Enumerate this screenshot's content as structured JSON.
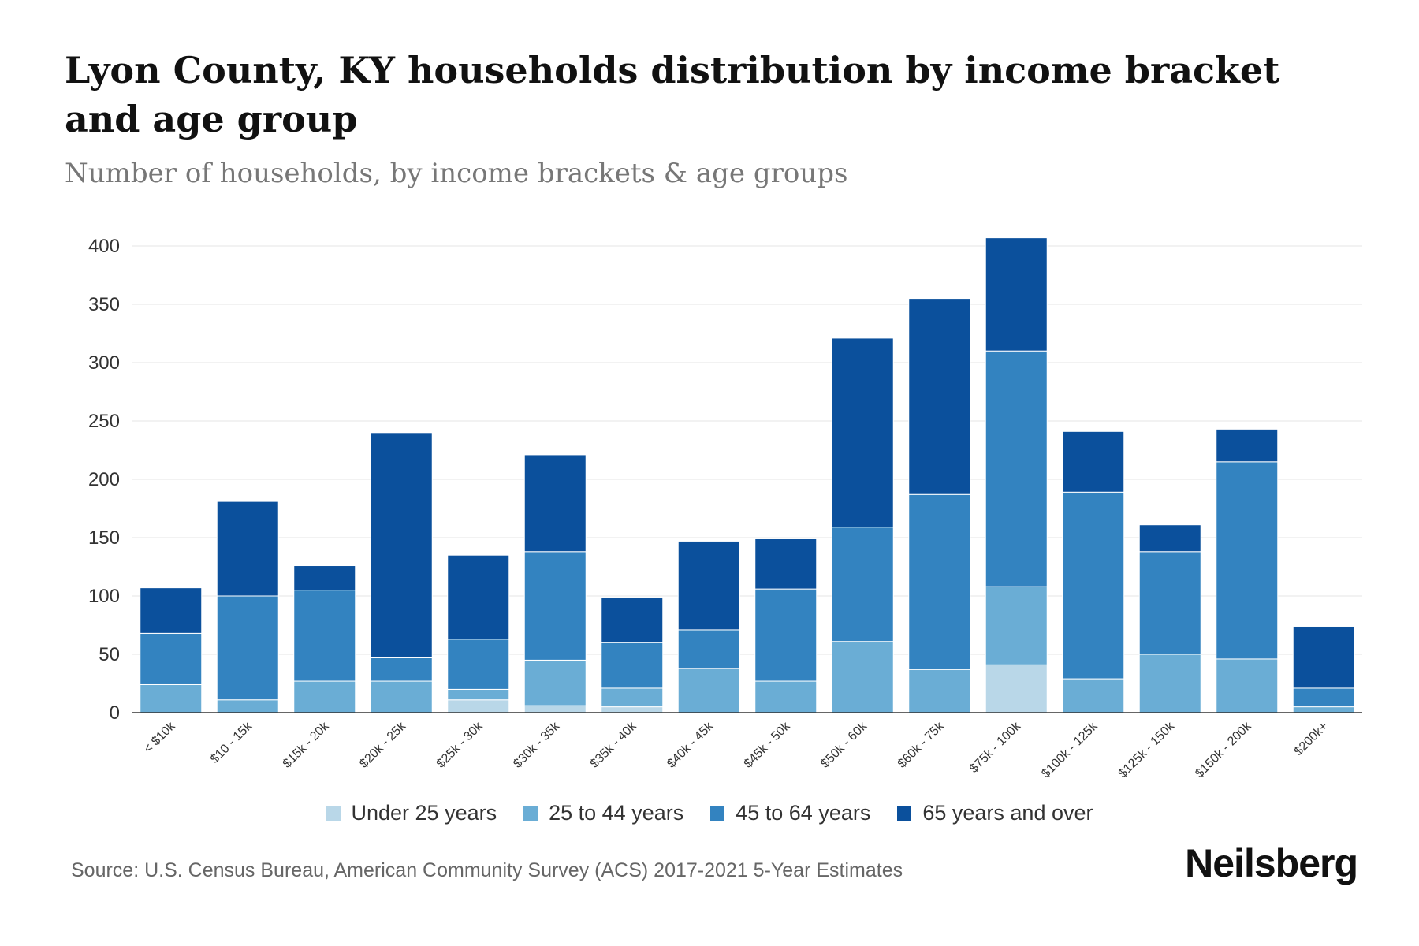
{
  "header": {
    "title": "Lyon County, KY households distribution by income bracket and age group",
    "subtitle": "Number of households, by income brackets & age groups"
  },
  "footer": {
    "source": "Source: U.S. Census Bureau, American Community Survey (ACS) 2017-2021 5-Year Estimates",
    "brand": "Neilsberg"
  },
  "colors": {
    "under_25": "#b9d7e8",
    "age_25_44": "#6aadd5",
    "age_45_64": "#3383c0",
    "age_65_over": "#0b509c",
    "grid": "#eeeeee",
    "axis": "#333333"
  },
  "chart_data": {
    "type": "bar",
    "stacked": true,
    "title": "Lyon County, KY households distribution by income bracket and age group",
    "subtitle": "Number of households, by income brackets & age groups",
    "xlabel": "",
    "ylabel": "",
    "ylim": [
      0,
      400
    ],
    "yticks": [
      0,
      50,
      100,
      150,
      200,
      250,
      300,
      350,
      400
    ],
    "grid": true,
    "legend_position": "bottom-center",
    "categories": [
      "< $10k",
      "$10 - 15k",
      "$15k - 20k",
      "$20k - 25k",
      "$25k - 30k",
      "$30k - 35k",
      "$35k - 40k",
      "$40k - 45k",
      "$45k - 50k",
      "$50k - 60k",
      "$60k - 75k",
      "$75k - 100k",
      "$100k - 125k",
      "$125k - 150k",
      "$150k - 200k",
      "$200k+"
    ],
    "series": [
      {
        "name": "Under 25 years",
        "values": [
          0,
          0,
          0,
          0,
          11,
          6,
          5,
          0,
          0,
          0,
          0,
          41,
          0,
          0,
          0,
          0
        ]
      },
      {
        "name": "25 to 44 years",
        "values": [
          24,
          11,
          27,
          27,
          9,
          39,
          16,
          38,
          27,
          61,
          37,
          67,
          29,
          50,
          46,
          5
        ]
      },
      {
        "name": "45 to 64 years",
        "values": [
          44,
          89,
          78,
          20,
          43,
          93,
          39,
          33,
          79,
          98,
          150,
          202,
          160,
          88,
          169,
          16
        ]
      },
      {
        "name": "65 years and over",
        "values": [
          39,
          81,
          21,
          193,
          72,
          83,
          39,
          76,
          43,
          162,
          168,
          97,
          52,
          23,
          28,
          53
        ]
      }
    ]
  }
}
